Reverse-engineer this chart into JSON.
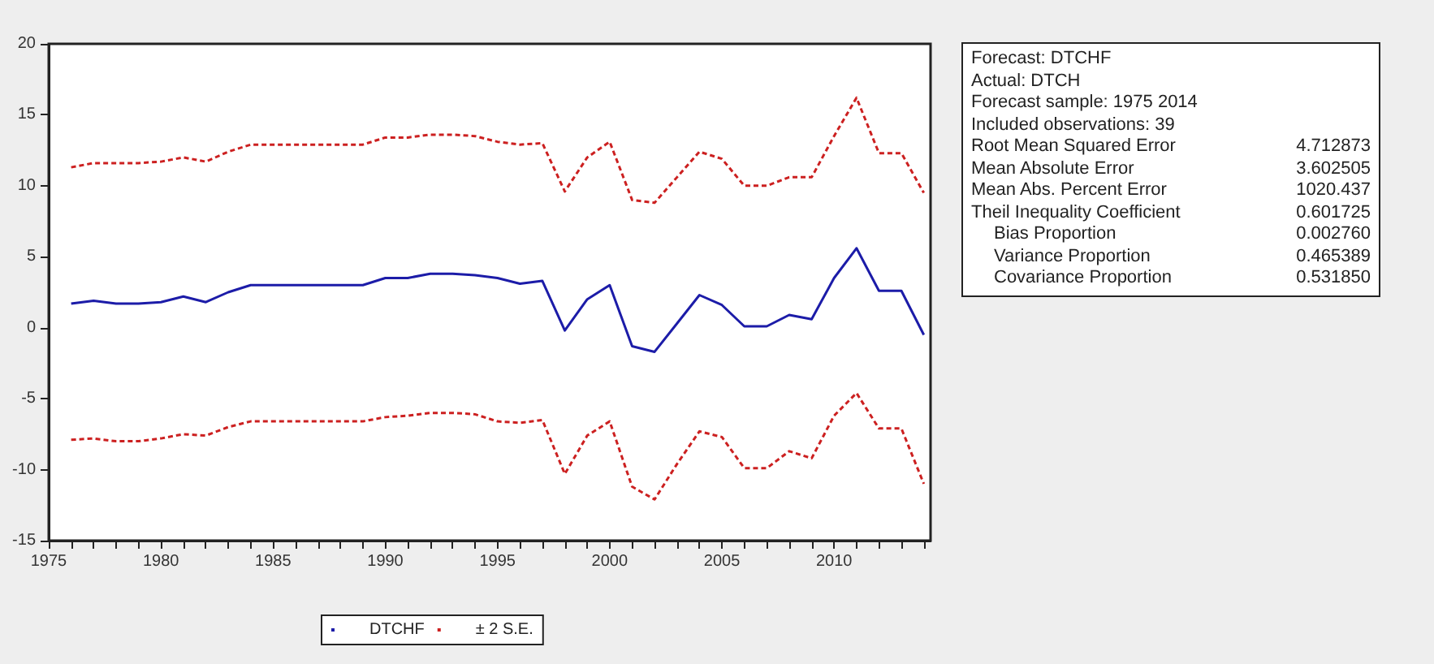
{
  "chart_data": {
    "type": "line",
    "x": [
      1976,
      1977,
      1978,
      1979,
      1980,
      1981,
      1982,
      1983,
      1984,
      1985,
      1986,
      1987,
      1988,
      1989,
      1990,
      1991,
      1992,
      1993,
      1994,
      1995,
      1996,
      1997,
      1998,
      1999,
      2000,
      2001,
      2002,
      2003,
      2004,
      2005,
      2006,
      2007,
      2008,
      2009,
      2010,
      2011,
      2012,
      2013,
      2014
    ],
    "series": [
      {
        "name": "DTCHF",
        "color": "#1c1ca8",
        "line_style": "solid",
        "values": [
          1.7,
          1.9,
          1.7,
          1.7,
          1.8,
          2.2,
          1.8,
          2.5,
          3.0,
          3.0,
          3.0,
          3.0,
          3.0,
          3.0,
          3.5,
          3.5,
          3.8,
          3.8,
          3.7,
          3.5,
          3.1,
          3.3,
          -0.2,
          2.0,
          3.0,
          -1.3,
          -1.7,
          0.3,
          2.3,
          1.6,
          0.1,
          0.1,
          0.9,
          0.6,
          3.5,
          5.6,
          2.6,
          2.6,
          -0.5
        ]
      },
      {
        "name": "± 2 S.E.",
        "color": "#cc2020",
        "line_style": "dashed",
        "values": [
          11.3,
          11.6,
          11.6,
          11.6,
          11.7,
          12.0,
          11.7,
          12.4,
          12.9,
          12.9,
          12.9,
          12.9,
          12.9,
          12.9,
          13.4,
          13.4,
          13.6,
          13.6,
          13.5,
          13.1,
          12.9,
          13.0,
          9.6,
          12.0,
          13.1,
          9.0,
          8.8,
          10.6,
          12.4,
          11.9,
          10.0,
          10.0,
          10.6,
          10.6,
          13.5,
          16.2,
          12.3,
          12.3,
          9.5
        ]
      },
      {
        "color": "#cc2020",
        "line_style": "dashed",
        "values": [
          -7.9,
          -7.8,
          -8.0,
          -8.0,
          -7.8,
          -7.5,
          -7.6,
          -7.0,
          -6.6,
          -6.6,
          -6.6,
          -6.6,
          -6.6,
          -6.6,
          -6.3,
          -6.2,
          -6.0,
          -6.0,
          -6.1,
          -6.6,
          -6.7,
          -6.5,
          -10.3,
          -7.6,
          -6.6,
          -11.2,
          -12.1,
          -9.6,
          -7.3,
          -7.7,
          -9.9,
          -9.9,
          -8.7,
          -9.2,
          -6.2,
          -4.6,
          -7.1,
          -7.1,
          -11.0
        ]
      }
    ],
    "xlim": [
      1975,
      2014.3
    ],
    "xticks": [
      1975,
      {
        "value": 1976,
        "label": null
      },
      {
        "value": 1977,
        "label": null
      },
      {
        "value": 1978,
        "label": null
      },
      {
        "value": 1979,
        "label": null
      },
      1980,
      {
        "value": 1981,
        "label": null
      },
      {
        "value": 1982,
        "label": null
      },
      {
        "value": 1983,
        "label": null
      },
      {
        "value": 1984,
        "label": null
      },
      1985,
      {
        "value": 1986,
        "label": null
      },
      {
        "value": 1987,
        "label": null
      },
      {
        "value": 1988,
        "label": null
      },
      {
        "value": 1989,
        "label": null
      },
      1990,
      {
        "value": 1991,
        "label": null
      },
      {
        "value": 1992,
        "label": null
      },
      {
        "value": 1993,
        "label": null
      },
      {
        "value": 1994,
        "label": null
      },
      1995,
      {
        "value": 1996,
        "label": null
      },
      {
        "value": 1997,
        "label": null
      },
      {
        "value": 1998,
        "label": null
      },
      {
        "value": 1999,
        "label": null
      },
      2000,
      {
        "value": 2001,
        "label": null
      },
      {
        "value": 2002,
        "label": null
      },
      {
        "value": 2003,
        "label": null
      },
      {
        "value": 2004,
        "label": null
      },
      2005,
      {
        "value": 2006,
        "label": null
      },
      {
        "value": 2007,
        "label": null
      },
      {
        "value": 2008,
        "label": null
      },
      {
        "value": 2009,
        "label": null
      },
      2010,
      {
        "value": 2011,
        "label": null
      },
      {
        "value": 2012,
        "label": null
      },
      {
        "value": 2013,
        "label": null
      },
      {
        "value": 2014,
        "label": null
      }
    ],
    "ylim": [
      -15,
      20
    ],
    "yticks": [
      -15,
      -10,
      -5,
      0,
      5,
      10,
      15,
      20
    ],
    "grid": false,
    "marker": "none",
    "legend": "bottom",
    "annotations": [
      "Forecast: DTCHF",
      "Actual: DTCH",
      "Forecast sample: 1975 2014",
      "Included observations: 39",
      "Root Mean Squared Error",
      "4.712873",
      "Mean Absolute Error",
      "3.602505",
      "Mean Abs. Percent Error",
      "1020.437",
      "Theil Inequality Coefficient",
      "0.601725",
      "Bias Proportion",
      "0.002760",
      "Variance Proportion",
      "0.465389",
      "Covariance Proportion",
      "0.531850"
    ]
  }
}
